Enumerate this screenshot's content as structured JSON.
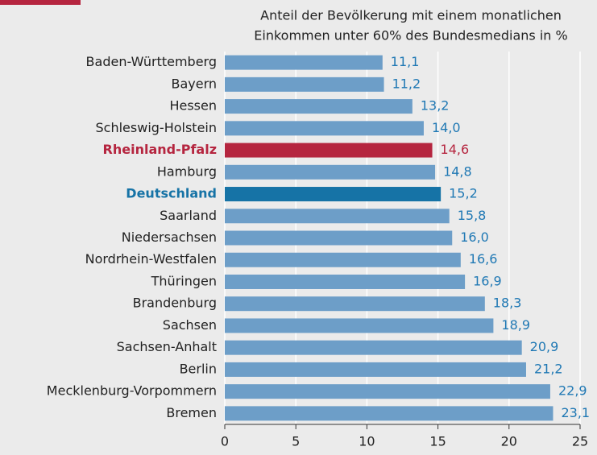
{
  "chart_data": {
    "type": "barh",
    "title": [
      "Anteil der Bevölkerung mit einem monatlichen",
      "Einkommen unter 60% des Bundesmedians in %"
    ],
    "categories": [
      "Baden-Württemberg",
      "Bayern",
      "Hessen",
      "Schleswig-Holstein",
      "Rheinland-Pfalz",
      "Hamburg",
      "Deutschland",
      "Saarland",
      "Niedersachsen",
      "Nordrhein-Westfalen",
      "Thüringen",
      "Brandenburg",
      "Sachsen",
      "Sachsen-Anhalt",
      "Berlin",
      "Mecklenburg-Vorpommern",
      "Bremen"
    ],
    "values": [
      11.1,
      11.2,
      13.2,
      14.0,
      14.6,
      14.8,
      15.2,
      15.8,
      16.0,
      16.6,
      16.9,
      18.3,
      18.9,
      20.9,
      21.2,
      22.9,
      23.1
    ],
    "value_labels": [
      "11,1",
      "11,2",
      "13,2",
      "14,0",
      "14,6",
      "14,8",
      "15,2",
      "15,8",
      "16,0",
      "16,6",
      "16,9",
      "18,3",
      "18,9",
      "20,9",
      "21,2",
      "22,9",
      "23,1"
    ],
    "color": "#6d9ec8",
    "colors": [
      "#6d9ec8",
      "#6d9ec8",
      "#6d9ec8",
      "#6d9ec8",
      "#b5253f",
      "#6d9ec8",
      "#1673a6",
      "#6d9ec8",
      "#6d9ec8",
      "#6d9ec8",
      "#6d9ec8",
      "#6d9ec8",
      "#6d9ec8",
      "#6d9ec8",
      "#6d9ec8",
      "#6d9ec8",
      "#6d9ec8"
    ],
    "xlim": [
      0,
      25
    ],
    "xticks": [
      0,
      5,
      10,
      15,
      20,
      25
    ],
    "grid": true
  }
}
